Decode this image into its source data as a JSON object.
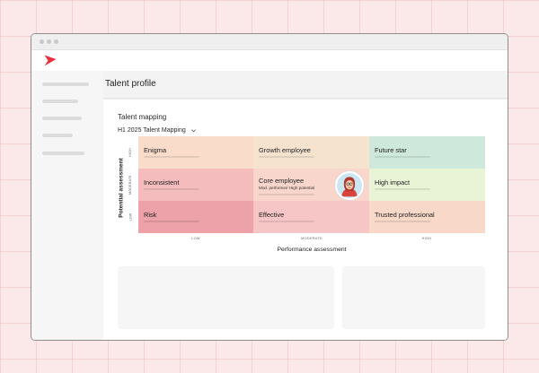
{
  "window": {
    "page_title": "Talent profile"
  },
  "sidebar": {
    "items": [
      {
        "width": 52,
        "top": 13
      },
      {
        "width": 40,
        "top": 32
      },
      {
        "width": 44,
        "top": 51
      },
      {
        "width": 34,
        "top": 70
      },
      {
        "width": 47,
        "top": 90
      }
    ]
  },
  "section": {
    "title": "Talent mapping",
    "selector_value": "H1 2025 Talent Mapping"
  },
  "axes": {
    "y_title": "Potential assessment",
    "y_ticks": [
      "HIGH",
      "MODERATE",
      "LOW"
    ],
    "x_title": "Performance assessment",
    "x_ticks": [
      "LOW",
      "MODERATE",
      "HIGH"
    ]
  },
  "grid": {
    "cells": [
      {
        "label": "Enigma",
        "color": "#f9dcc9"
      },
      {
        "label": "Growth employee",
        "color": "#f5e3d0"
      },
      {
        "label": "Future star",
        "color": "#cfe8dc"
      },
      {
        "label": "Inconsistent",
        "color": "#f4bcbc"
      },
      {
        "label": "Core employee",
        "sub": "Mod. performer/ High potential",
        "color": "#f8d6cc"
      },
      {
        "label": "High impact",
        "color": "#e9f3d5"
      },
      {
        "label": "Risk",
        "color": "#eda1a8"
      },
      {
        "label": "Effective",
        "color": "#f6c5c5"
      },
      {
        "label": "Trusted professional",
        "color": "#f8d8c9"
      }
    ]
  },
  "colors": {
    "accent": "#e8313b",
    "background": "#fbe9e9"
  },
  "icons": {
    "logo": "brand-arrow-icon",
    "selector": "chevron-down-icon",
    "avatar": "employee-avatar"
  }
}
